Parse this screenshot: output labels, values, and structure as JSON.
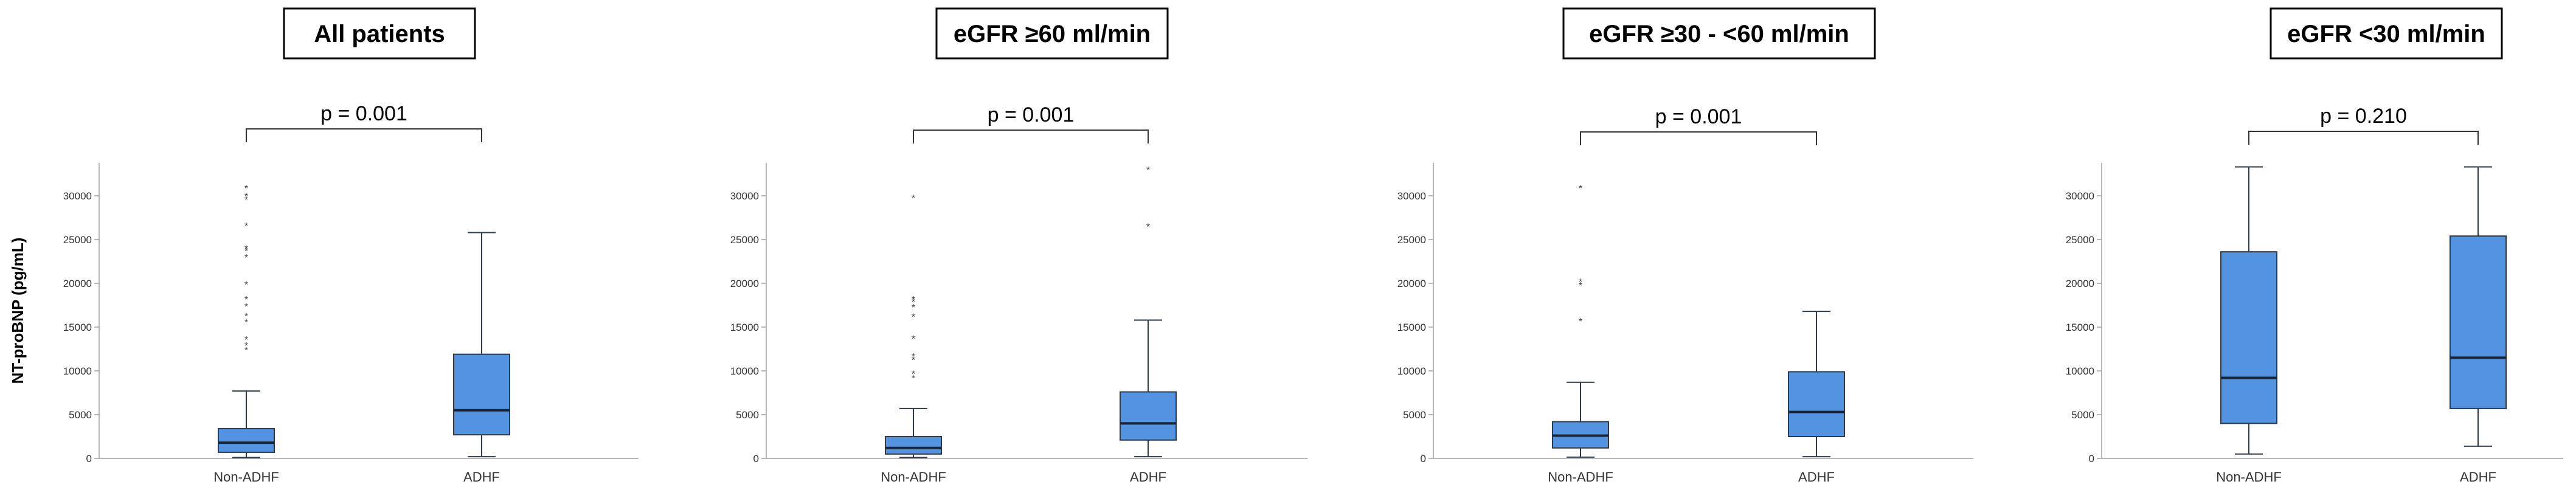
{
  "chart_data": [
    {
      "type": "box",
      "title": "All patients",
      "ylabel": "NT-proBNP (pg/mL)",
      "ylim": [
        0,
        32000
      ],
      "yticks": [
        0,
        5000,
        10000,
        15000,
        20000,
        25000,
        30000
      ],
      "categories": [
        "Non-ADHF",
        "ADHF"
      ],
      "p_value": "p = 0.001",
      "boxes": [
        {
          "category": "Non-ADHF",
          "whisker_low": 100,
          "q1": 700,
          "median": 1800,
          "q3": 3400,
          "whisker_high": 7700,
          "outliers": [
            12400,
            12900,
            13600,
            15600,
            16300,
            17400,
            18200,
            19900,
            23000,
            23700,
            24000,
            26600,
            29600,
            30000,
            30900
          ]
        },
        {
          "category": "ADHF",
          "whisker_low": 200,
          "q1": 2700,
          "median": 5500,
          "q3": 11900,
          "whisker_high": 25800,
          "outliers": []
        }
      ]
    },
    {
      "type": "box",
      "title": "eGFR ≥60 ml/min",
      "ylabel": "",
      "ylim": [
        0,
        33500
      ],
      "yticks": [
        0,
        5000,
        10000,
        15000,
        20000,
        25000,
        30000
      ],
      "categories": [
        "Non-ADHF",
        "ADHF"
      ],
      "p_value": "p = 0.001",
      "boxes": [
        {
          "category": "Non-ADHF",
          "whisker_low": 100,
          "q1": 500,
          "median": 1200,
          "q3": 2500,
          "whisker_high": 5700,
          "outliers": [
            9200,
            9700,
            11300,
            11700,
            13700,
            16200,
            17300,
            17900,
            18200,
            29800
          ]
        },
        {
          "category": "ADHF",
          "whisker_low": 200,
          "q1": 2100,
          "median": 4000,
          "q3": 7600,
          "whisker_high": 15800,
          "outliers": [
            26500,
            33000
          ]
        }
      ]
    },
    {
      "type": "box",
      "title": "eGFR ≥30 - <60 ml/min",
      "ylabel": "",
      "ylim": [
        0,
        33500
      ],
      "yticks": [
        0,
        5000,
        10000,
        15000,
        20000,
        25000,
        30000
      ],
      "categories": [
        "Non-ADHF",
        "ADHF"
      ],
      "p_value": "p = 0.001",
      "boxes": [
        {
          "category": "Non-ADHF",
          "whisker_low": 150,
          "q1": 1200,
          "median": 2600,
          "q3": 4200,
          "whisker_high": 8700,
          "outliers": [
            15700,
            19800,
            20200,
            30900
          ]
        },
        {
          "category": "ADHF",
          "whisker_low": 200,
          "q1": 2500,
          "median": 5300,
          "q3": 9900,
          "whisker_high": 16800,
          "outliers": []
        }
      ]
    },
    {
      "type": "box",
      "title": "eGFR <30 ml/min",
      "ylabel": "",
      "ylim": [
        0,
        33500
      ],
      "yticks": [
        0,
        5000,
        10000,
        15000,
        20000,
        25000,
        30000
      ],
      "categories": [
        "Non-ADHF",
        "ADHF"
      ],
      "p_value": "p = 0.210",
      "boxes": [
        {
          "category": "Non-ADHF",
          "whisker_low": 500,
          "q1": 4000,
          "median": 9200,
          "q3": 23600,
          "whisker_high": 33300,
          "outliers": []
        },
        {
          "category": "ADHF",
          "whisker_low": 1400,
          "q1": 5700,
          "median": 11500,
          "q3": 25400,
          "whisker_high": 33300,
          "outliers": []
        }
      ]
    }
  ]
}
